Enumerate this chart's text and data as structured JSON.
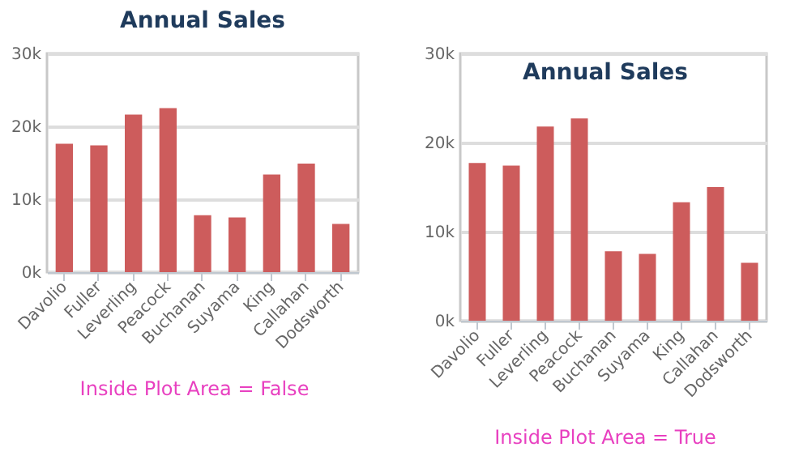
{
  "chart_data": [
    {
      "type": "bar",
      "title": "Annual Sales",
      "categories": [
        "Davolio",
        "Fuller",
        "Leverling",
        "Peacock",
        "Buchanan",
        "Suyama",
        "King",
        "Callahan",
        "Dodsworth"
      ],
      "values": [
        17.6,
        17.4,
        21.6,
        22.5,
        7.8,
        7.5,
        13.4,
        14.9,
        6.6
      ],
      "color": "#cd5c5c",
      "ylim": [
        0,
        30
      ],
      "yticks": [
        {
          "value": 0,
          "label": "0k"
        },
        {
          "value": 10,
          "label": "10k"
        },
        {
          "value": 20,
          "label": "20k"
        },
        {
          "value": 30,
          "label": "30k"
        }
      ],
      "grid": "y",
      "annotations": [
        "Inside Plot Area = False"
      ]
    },
    {
      "type": "bar",
      "title": "Annual Sales",
      "categories": [
        "Davolio",
        "Fuller",
        "Leverling",
        "Peacock",
        "Buchanan",
        "Suyama",
        "King",
        "Callahan",
        "Dodsworth"
      ],
      "values": [
        17.7,
        17.4,
        21.8,
        22.7,
        7.8,
        7.5,
        13.3,
        15.0,
        6.5
      ],
      "color": "#cd5c5c",
      "ylim": [
        0,
        30
      ],
      "yticks": [
        {
          "value": 0,
          "label": "0k"
        },
        {
          "value": 10,
          "label": "10k"
        },
        {
          "value": 20,
          "label": "20k"
        },
        {
          "value": 30,
          "label": "30k"
        }
      ],
      "grid": "y",
      "annotations": [
        "Inside Plot Area = True"
      ]
    }
  ]
}
